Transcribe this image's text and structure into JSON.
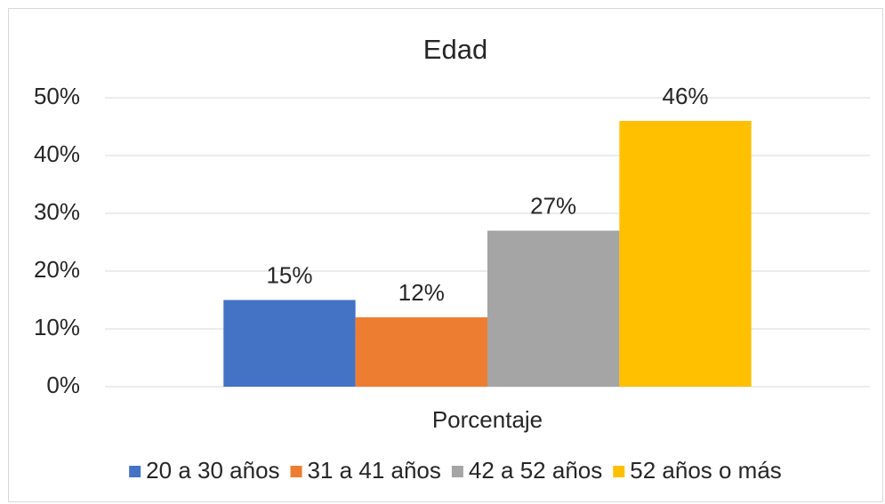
{
  "chart_data": {
    "type": "bar",
    "title": "Edad",
    "categories": [
      "Porcentaje"
    ],
    "series": [
      {
        "name": "20 a 30 años",
        "color": "#4472c4",
        "values": [
          15
        ],
        "value_labels": [
          "15%"
        ]
      },
      {
        "name": "31 a 41 años",
        "color": "#ed7d31",
        "values": [
          12
        ],
        "value_labels": [
          "12%"
        ]
      },
      {
        "name": "42 a 52 años",
        "color": "#a5a5a5",
        "values": [
          27
        ],
        "value_labels": [
          "27%"
        ]
      },
      {
        "name": "52 años o más",
        "color": "#ffc000",
        "values": [
          46
        ],
        "value_labels": [
          "46%"
        ]
      }
    ],
    "ylim": [
      0,
      50
    ],
    "yticks": [
      {
        "value": 0,
        "label": "0%"
      },
      {
        "value": 10,
        "label": "10%"
      },
      {
        "value": 20,
        "label": "20%"
      },
      {
        "value": 30,
        "label": "30%"
      },
      {
        "value": 40,
        "label": "40%"
      },
      {
        "value": 50,
        "label": "50%"
      }
    ],
    "grid": true,
    "legend": "bottom"
  }
}
